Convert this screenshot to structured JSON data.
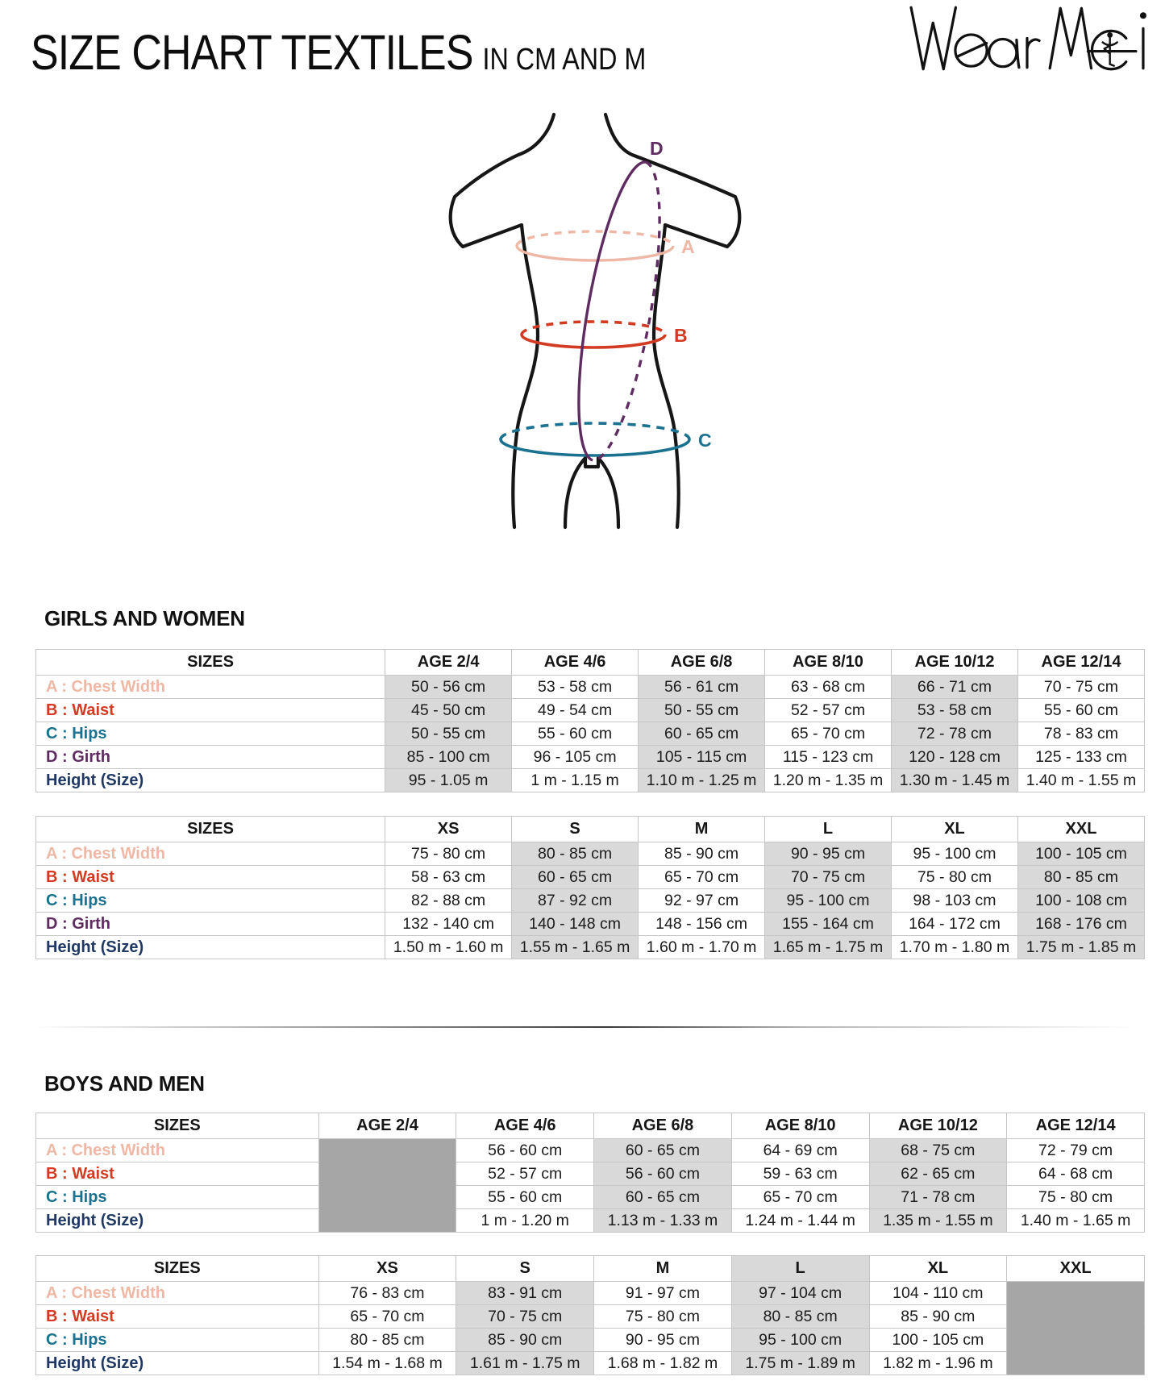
{
  "header": {
    "title": "SIZE CHART TEXTILES",
    "subtitle": "IN CM AND M",
    "brand": "Wear Moi"
  },
  "diagram": {
    "point_labels": {
      "chest": "A",
      "waist": "B",
      "hips": "C",
      "girth": "D"
    }
  },
  "colors": {
    "chest": "#EFB7A5",
    "waist": "#D23A22",
    "hips": "#1A7190",
    "girth": "#5E2C60",
    "height_label": "#1F3864",
    "body_outline": "#161616",
    "logo_ink": "#111111",
    "shade": "#D9D9D9",
    "dark": "#A6A6A6",
    "border": "#C6C6C6"
  },
  "sections": [
    {
      "heading": "GIRLS AND WOMEN",
      "tables": [
        {
          "label_width": "31.5%",
          "columns": [
            "SIZES",
            "AGE 2/4",
            "AGE 4/6",
            "AGE 6/8",
            "AGE 8/10",
            "AGE 10/12",
            "AGE 12/14"
          ],
          "shaded_header_cols": [],
          "shaded_value_cols": [
            0,
            2,
            4
          ],
          "dark_value_cols": [],
          "rows": [
            {
              "label": "A : Chest Width",
              "color": "chest",
              "values": [
                "50 - 56 cm",
                "53 - 58 cm",
                "56 - 61 cm",
                "63 - 68 cm",
                "66 - 71 cm",
                "70 - 75 cm"
              ]
            },
            {
              "label": "B : Waist",
              "color": "waist",
              "values": [
                "45 - 50 cm",
                "49 - 54 cm",
                "50 - 55 cm",
                "52 - 57 cm",
                "53 - 58 cm",
                "55 - 60 cm"
              ]
            },
            {
              "label": "C : Hips",
              "color": "hips",
              "values": [
                "50 - 55 cm",
                "55 - 60 cm",
                "60 - 65 cm",
                "65 - 70 cm",
                "72 - 78 cm",
                "78 - 83 cm"
              ]
            },
            {
              "label": "D : Girth",
              "color": "girth",
              "values": [
                "85 - 100 cm",
                "96 - 105 cm",
                "105 - 115 cm",
                "115 - 123 cm",
                "120 - 128 cm",
                "125 - 133 cm"
              ]
            },
            {
              "label": "Height (Size)",
              "color": "height_label",
              "values": [
                "95 - 1.05 m",
                "1 m - 1.15 m",
                "1.10 m - 1.25 m",
                "1.20 m - 1.35 m",
                "1.30 m - 1.45 m",
                "1.40 m - 1.55 m"
              ]
            }
          ]
        },
        {
          "label_width": "31.5%",
          "columns": [
            "SIZES",
            "XS",
            "S",
            "M",
            "L",
            "XL",
            "XXL"
          ],
          "shaded_header_cols": [],
          "shaded_value_cols": [
            1,
            3,
            5
          ],
          "dark_value_cols": [],
          "rows": [
            {
              "label": "A : Chest Width",
              "color": "chest",
              "values": [
                "75 - 80 cm",
                "80 - 85 cm",
                "85 - 90 cm",
                "90 - 95 cm",
                "95 - 100 cm",
                "100 - 105 cm"
              ]
            },
            {
              "label": "B : Waist",
              "color": "waist",
              "values": [
                "58 - 63 cm",
                "60 - 65 cm",
                "65 - 70 cm",
                "70 - 75 cm",
                "75 - 80 cm",
                "80 - 85 cm"
              ]
            },
            {
              "label": "C : Hips",
              "color": "hips",
              "values": [
                "82 - 88 cm",
                "87 - 92 cm",
                "92 - 97 cm",
                "95 - 100 cm",
                "98 - 103 cm",
                "100 - 108 cm"
              ]
            },
            {
              "label": "D : Girth",
              "color": "girth",
              "values": [
                "132 - 140 cm",
                "140 - 148 cm",
                "148 - 156 cm",
                "155 - 164 cm",
                "164 - 172 cm",
                "168 - 176 cm"
              ]
            },
            {
              "label": "Height (Size)",
              "color": "height_label",
              "values": [
                "1.50 m - 1.60 m",
                "1.55 m - 1.65 m",
                "1.60 m - 1.70 m",
                "1.65 m - 1.75 m",
                "1.70 m - 1.80 m",
                "1.75 m - 1.85 m"
              ]
            }
          ]
        }
      ]
    },
    {
      "heading": "BOYS AND MEN",
      "tables": [
        {
          "label_width": "25.5%",
          "columns": [
            "SIZES",
            "AGE 2/4",
            "AGE 4/6",
            "AGE 6/8",
            "AGE 8/10",
            "AGE 10/12",
            "AGE 12/14"
          ],
          "shaded_header_cols": [],
          "shaded_value_cols": [
            2,
            4
          ],
          "dark_value_cols": [
            0
          ],
          "rows": [
            {
              "label": "A : Chest Width",
              "color": "chest",
              "values": [
                "",
                "56 - 60 cm",
                "60 - 65 cm",
                "64 - 69 cm",
                "68 - 75 cm",
                "72 - 79 cm"
              ]
            },
            {
              "label": "B : Waist",
              "color": "waist",
              "values": [
                "",
                "52 - 57 cm",
                "56 - 60 cm",
                "59 - 63 cm",
                "62 - 65 cm",
                "64 - 68 cm"
              ]
            },
            {
              "label": "C : Hips",
              "color": "hips",
              "values": [
                "",
                "55 - 60 cm",
                "60 - 65 cm",
                "65 - 70 cm",
                "71 - 78 cm",
                "75 - 80 cm"
              ]
            },
            {
              "label": "Height (Size)",
              "color": "height_label",
              "values": [
                "",
                "1 m - 1.20 m",
                "1.13 m - 1.33 m",
                "1.24 m - 1.44 m",
                "1.35 m - 1.55 m",
                "1.40 m - 1.65 m"
              ]
            }
          ]
        },
        {
          "label_width": "25.5%",
          "columns": [
            "SIZES",
            "XS",
            "S",
            "M",
            "L",
            "XL",
            "XXL"
          ],
          "shaded_header_cols": [
            4
          ],
          "shaded_value_cols": [
            1,
            3
          ],
          "dark_value_cols": [
            5
          ],
          "rows": [
            {
              "label": "A : Chest Width",
              "color": "chest",
              "values": [
                "76 - 83 cm",
                "83 - 91 cm",
                "91 - 97 cm",
                "97 - 104 cm",
                "104 - 110 cm",
                ""
              ]
            },
            {
              "label": "B : Waist",
              "color": "waist",
              "values": [
                "65 - 70 cm",
                "70 - 75 cm",
                "75 - 80 cm",
                "80 - 85 cm",
                "85 - 90 cm",
                ""
              ]
            },
            {
              "label": "C : Hips",
              "color": "hips",
              "values": [
                "80 - 85 cm",
                "85 - 90 cm",
                "90 - 95 cm",
                "95 - 100 cm",
                "100 - 105 cm",
                ""
              ]
            },
            {
              "label": "Height (Size)",
              "color": "height_label",
              "values": [
                "1.54 m - 1.68 m",
                "1.61 m - 1.75 m",
                "1.68 m - 1.82 m",
                "1.75 m - 1.89 m",
                "1.82 m - 1.96 m",
                ""
              ]
            }
          ]
        }
      ]
    }
  ]
}
